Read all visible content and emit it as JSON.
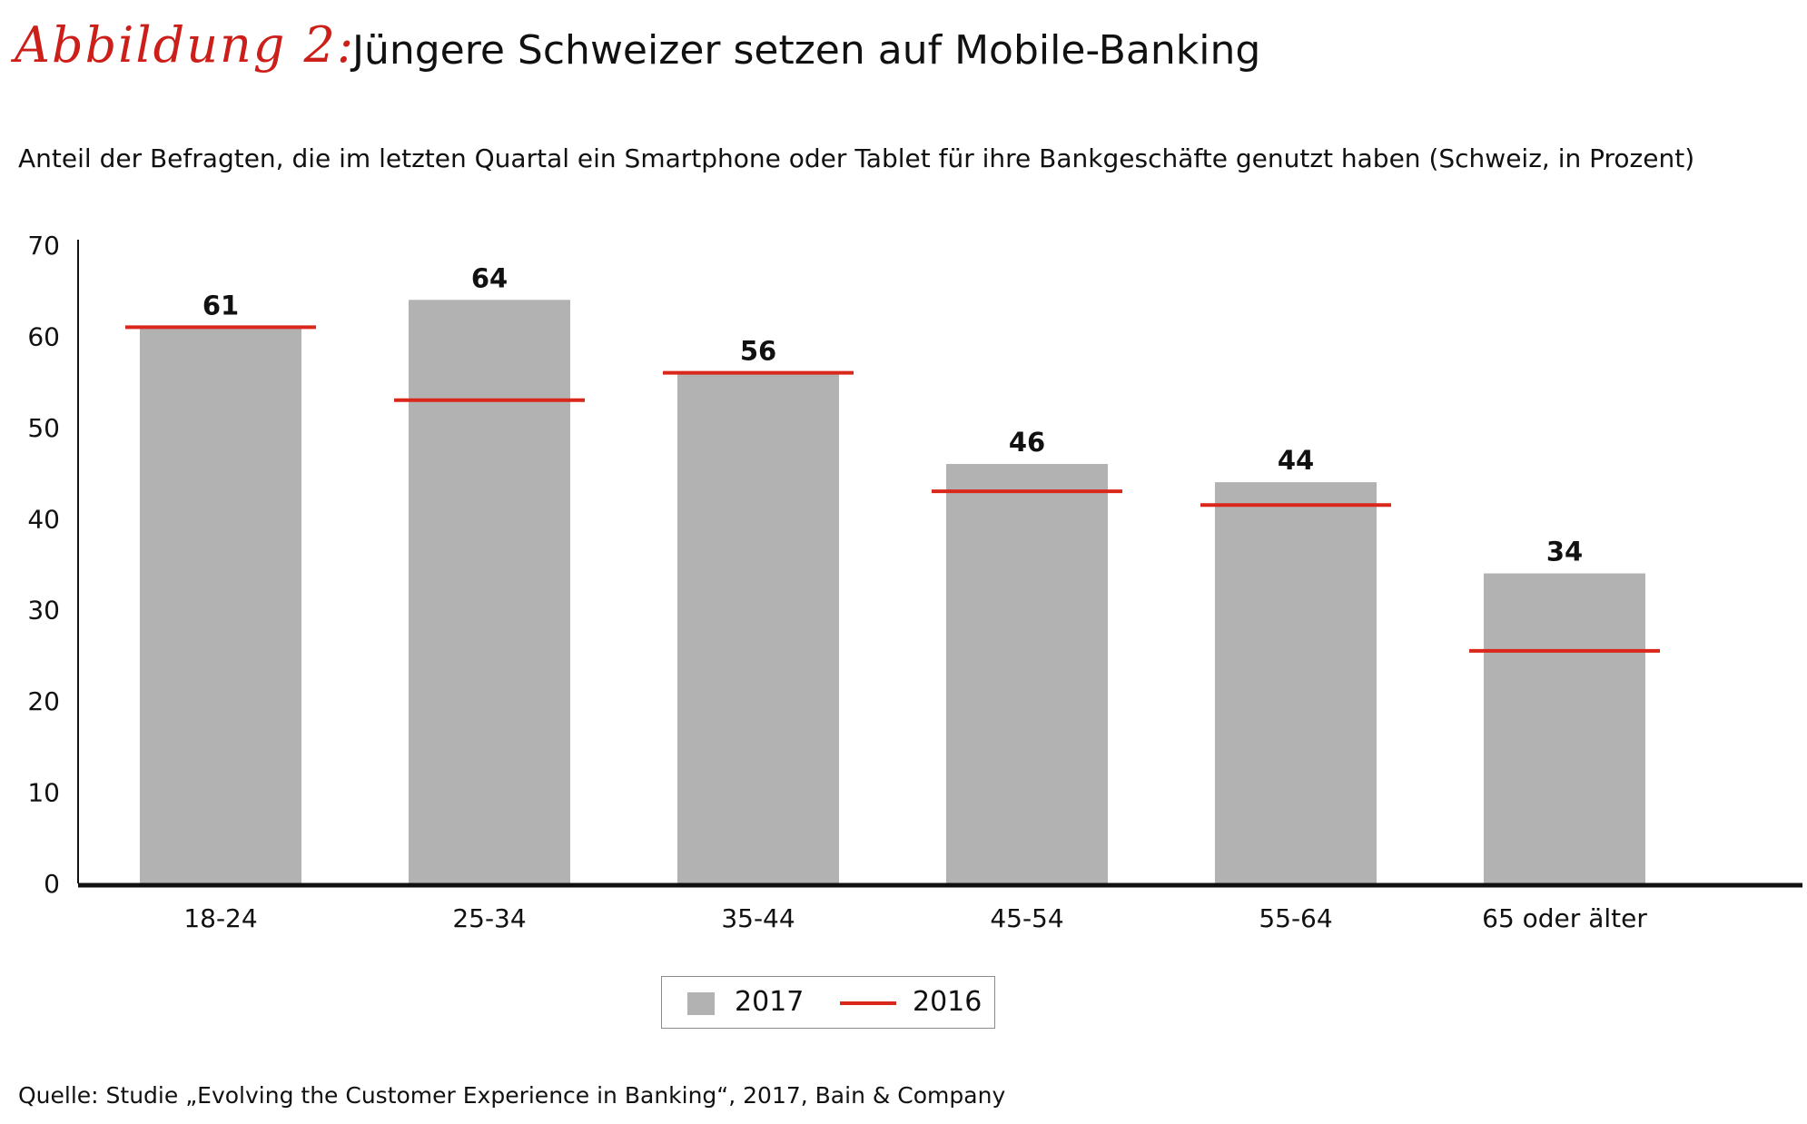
{
  "header": {
    "figure_label": "Abbildung 2:",
    "title": "Jüngere Schweizer setzen auf Mobile-Banking",
    "subtitle": "Anteil der Befragten, die im letzten Quartal ein Smartphone oder Tablet für ihre Bankgeschäfte genutzt haben (Schweiz, in Prozent)"
  },
  "footer": {
    "source": "Quelle: Studie „Evolving the Customer Experience in Banking“, 2017, Bain & Company"
  },
  "colors": {
    "accent": "#cc1f1a",
    "bar_2017": "#b2b2b2",
    "line_2016": "#d9271c",
    "axis": "#111111"
  },
  "chart_data": {
    "type": "bar",
    "categories": [
      "18-24",
      "25-34",
      "35-44",
      "45-54",
      "55-64",
      "65 oder älter"
    ],
    "series": [
      {
        "name": "2017",
        "kind": "bar",
        "values": [
          61,
          64,
          56,
          46,
          44,
          34
        ],
        "data_labels": [
          "61",
          "64",
          "56",
          "46",
          "44",
          "34"
        ]
      },
      {
        "name": "2016",
        "kind": "marker-line",
        "values": [
          61,
          53,
          56,
          43,
          41.5,
          25.5
        ]
      }
    ],
    "ylim": [
      0,
      70
    ],
    "yticks": [
      0,
      10,
      20,
      30,
      40,
      50,
      60,
      70
    ],
    "grid": false,
    "legend_position": "bottom-center"
  },
  "legend": {
    "items": [
      {
        "label": "2017"
      },
      {
        "label": "2016"
      }
    ]
  }
}
